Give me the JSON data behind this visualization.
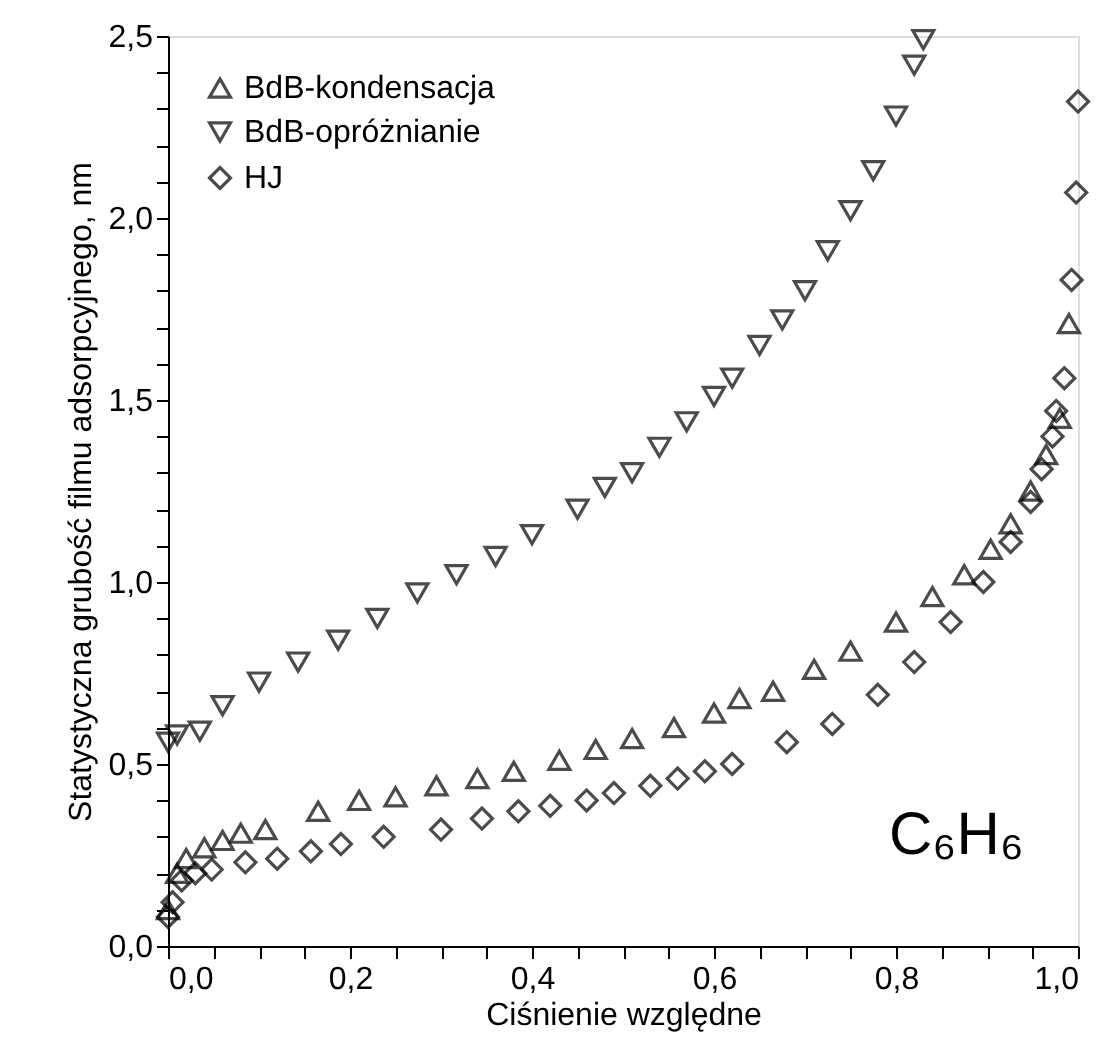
{
  "chart_data": {
    "type": "scatter",
    "xlabel": "Ciśnienie względne",
    "ylabel": "Statystyczna grubość filmu adsorpcyjnego, nm",
    "xlim": [
      0,
      1
    ],
    "ylim": [
      0,
      2.5
    ],
    "xticks": [
      {
        "value": 0,
        "label": "0,0"
      },
      {
        "value": 0.05,
        "label": null
      },
      {
        "value": 0.1,
        "label": null
      },
      {
        "value": 0.15,
        "label": null
      },
      {
        "value": 0.2,
        "label": "0,2"
      },
      {
        "value": 0.25,
        "label": null
      },
      {
        "value": 0.3,
        "label": null
      },
      {
        "value": 0.35,
        "label": null
      },
      {
        "value": 0.4,
        "label": "0,4"
      },
      {
        "value": 0.45,
        "label": null
      },
      {
        "value": 0.5,
        "label": null
      },
      {
        "value": 0.55,
        "label": null
      },
      {
        "value": 0.6,
        "label": "0,6"
      },
      {
        "value": 0.65,
        "label": null
      },
      {
        "value": 0.7,
        "label": null
      },
      {
        "value": 0.75,
        "label": null
      },
      {
        "value": 0.8,
        "label": "0,8"
      },
      {
        "value": 0.85,
        "label": null
      },
      {
        "value": 0.9,
        "label": null
      },
      {
        "value": 0.95,
        "label": null
      },
      {
        "value": 1,
        "label": "1,0"
      }
    ],
    "yticks": [
      {
        "value": 0,
        "label": "0,0"
      },
      {
        "value": 0.1,
        "label": null
      },
      {
        "value": 0.2,
        "label": null
      },
      {
        "value": 0.3,
        "label": null
      },
      {
        "value": 0.4,
        "label": null
      },
      {
        "value": 0.5,
        "label": "0,5"
      },
      {
        "value": 0.6,
        "label": null
      },
      {
        "value": 0.7,
        "label": null
      },
      {
        "value": 0.8,
        "label": null
      },
      {
        "value": 0.9,
        "label": null
      },
      {
        "value": 1,
        "label": "1,0"
      },
      {
        "value": 1.1,
        "label": null
      },
      {
        "value": 1.2,
        "label": null
      },
      {
        "value": 1.3,
        "label": null
      },
      {
        "value": 1.4,
        "label": null
      },
      {
        "value": 1.5,
        "label": "1,5"
      },
      {
        "value": 1.6,
        "label": null
      },
      {
        "value": 1.7,
        "label": null
      },
      {
        "value": 1.8,
        "label": null
      },
      {
        "value": 1.9,
        "label": null
      },
      {
        "value": 2,
        "label": "2,0"
      },
      {
        "value": 2.1,
        "label": null
      },
      {
        "value": 2.2,
        "label": null
      },
      {
        "value": 2.3,
        "label": null
      },
      {
        "value": 2.4,
        "label": null
      },
      {
        "value": 2.5,
        "label": "2,5"
      }
    ],
    "grid": false,
    "legend": "top left",
    "annotations": [
      "C₆H₆"
    ],
    "series": [
      {
        "name": "BdB-kondensacja",
        "color": "#000000",
        "marker": "triangle",
        "x": [
          0.0,
          0.01,
          0.02,
          0.04,
          0.06,
          0.08,
          0.107,
          0.165,
          0.21,
          0.25,
          0.295,
          0.34,
          0.38,
          0.43,
          0.47,
          0.51,
          0.556,
          0.6,
          0.628,
          0.665,
          0.71,
          0.75,
          0.8,
          0.84,
          0.875,
          0.904,
          0.926,
          0.948,
          0.965,
          0.98,
          0.99
        ],
        "values": [
          0.1,
          0.2,
          0.24,
          0.27,
          0.29,
          0.31,
          0.32,
          0.37,
          0.4,
          0.41,
          0.44,
          0.46,
          0.48,
          0.51,
          0.54,
          0.57,
          0.6,
          0.64,
          0.68,
          0.7,
          0.76,
          0.81,
          0.89,
          0.96,
          1.02,
          1.09,
          1.16,
          1.25,
          1.35,
          1.45,
          1.71
        ]
      },
      {
        "name": "BdB-opróżnianie",
        "color": "#000000",
        "marker": "triangle-down",
        "x": [
          0.0,
          0.01,
          0.035,
          0.06,
          0.1,
          0.143,
          0.187,
          0.23,
          0.274,
          0.317,
          0.36,
          0.4,
          0.45,
          0.48,
          0.51,
          0.54,
          0.57,
          0.6,
          0.62,
          0.65,
          0.675,
          0.7,
          0.725,
          0.75,
          0.775,
          0.8,
          0.82,
          0.83
        ],
        "values": [
          0.56,
          0.58,
          0.59,
          0.66,
          0.725,
          0.78,
          0.84,
          0.9,
          0.97,
          1.02,
          1.07,
          1.13,
          1.2,
          1.26,
          1.3,
          1.37,
          1.44,
          1.51,
          1.56,
          1.65,
          1.72,
          1.8,
          1.91,
          2.02,
          2.13,
          2.28,
          2.42,
          2.49
        ]
      },
      {
        "name": "HJ",
        "color": "#000000",
        "marker": "diamond",
        "x": [
          0.0,
          0.005,
          0.015,
          0.03,
          0.048,
          0.085,
          0.12,
          0.157,
          0.19,
          0.237,
          0.3,
          0.345,
          0.385,
          0.42,
          0.46,
          0.49,
          0.53,
          0.56,
          0.59,
          0.62,
          0.68,
          0.73,
          0.78,
          0.82,
          0.86,
          0.896,
          0.926,
          0.948,
          0.96,
          0.972,
          0.976,
          0.985,
          0.993,
          0.998,
          1.0
        ],
        "values": [
          0.08,
          0.12,
          0.18,
          0.2,
          0.21,
          0.23,
          0.24,
          0.26,
          0.28,
          0.3,
          0.32,
          0.35,
          0.37,
          0.385,
          0.4,
          0.42,
          0.44,
          0.46,
          0.48,
          0.5,
          0.56,
          0.61,
          0.69,
          0.78,
          0.89,
          1.0,
          1.11,
          1.22,
          1.31,
          1.4,
          1.47,
          1.56,
          1.83,
          2.07,
          2.32
        ]
      }
    ]
  }
}
